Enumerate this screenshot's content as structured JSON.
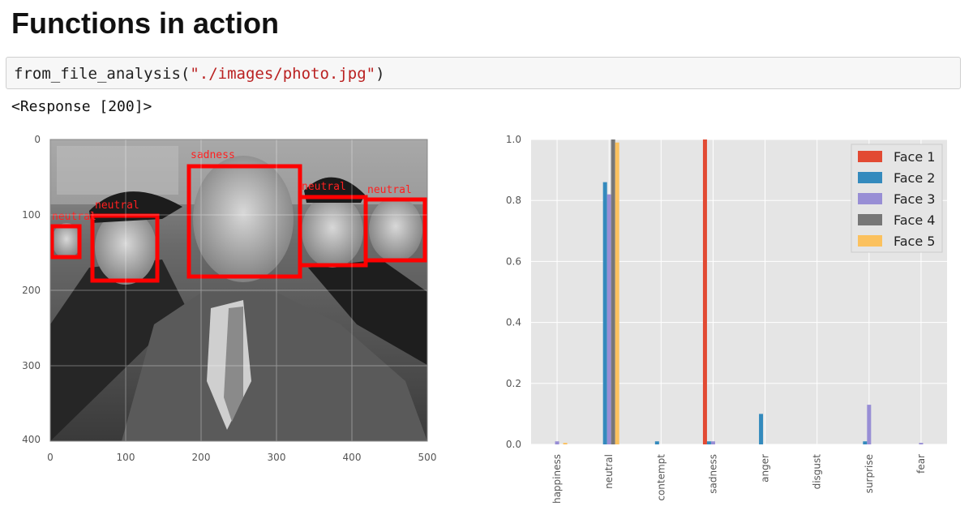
{
  "heading": "Functions in action",
  "code": {
    "func": "from_file_analysis(",
    "arg": "\"./images/photo.jpg\"",
    "close": ")"
  },
  "output": "<Response [200]>",
  "image_plot": {
    "x_ticks": [
      "0",
      "100",
      "200",
      "300",
      "400",
      "500"
    ],
    "y_ticks": [
      "0",
      "100",
      "200",
      "300",
      "400"
    ],
    "face_labels": [
      "neutral",
      "neutral",
      "sadness",
      "neutral",
      "neutral"
    ],
    "box_color": "#ff0000"
  },
  "chart_data": {
    "type": "bar",
    "categories": [
      "happiness",
      "neutral",
      "contempt",
      "sadness",
      "anger",
      "disgust",
      "surprise",
      "fear"
    ],
    "ylim": [
      0,
      1.0
    ],
    "y_ticks": [
      "0.0",
      "0.2",
      "0.4",
      "0.6",
      "0.8",
      "1.0"
    ],
    "grid": true,
    "legend_position": "top-right",
    "series": [
      {
        "name": "Face 1",
        "color": "#e24a33",
        "values": [
          0.0,
          0.0,
          0.0,
          1.0,
          0.0,
          0.0,
          0.0,
          0.0
        ]
      },
      {
        "name": "Face 2",
        "color": "#348abd",
        "values": [
          0.0,
          0.86,
          0.01,
          0.01,
          0.1,
          0.0,
          0.01,
          0.0
        ]
      },
      {
        "name": "Face 3",
        "color": "#988ed5",
        "values": [
          0.01,
          0.82,
          0.0,
          0.01,
          0.0,
          0.0,
          0.13,
          0.005
        ]
      },
      {
        "name": "Face 4",
        "color": "#777777",
        "values": [
          0.0,
          1.0,
          0.0,
          0.0,
          0.0,
          0.0,
          0.0,
          0.0
        ]
      },
      {
        "name": "Face 5",
        "color": "#fbc15e",
        "values": [
          0.005,
          0.99,
          0.0,
          0.0,
          0.0,
          0.0,
          0.0,
          0.0
        ]
      }
    ]
  }
}
